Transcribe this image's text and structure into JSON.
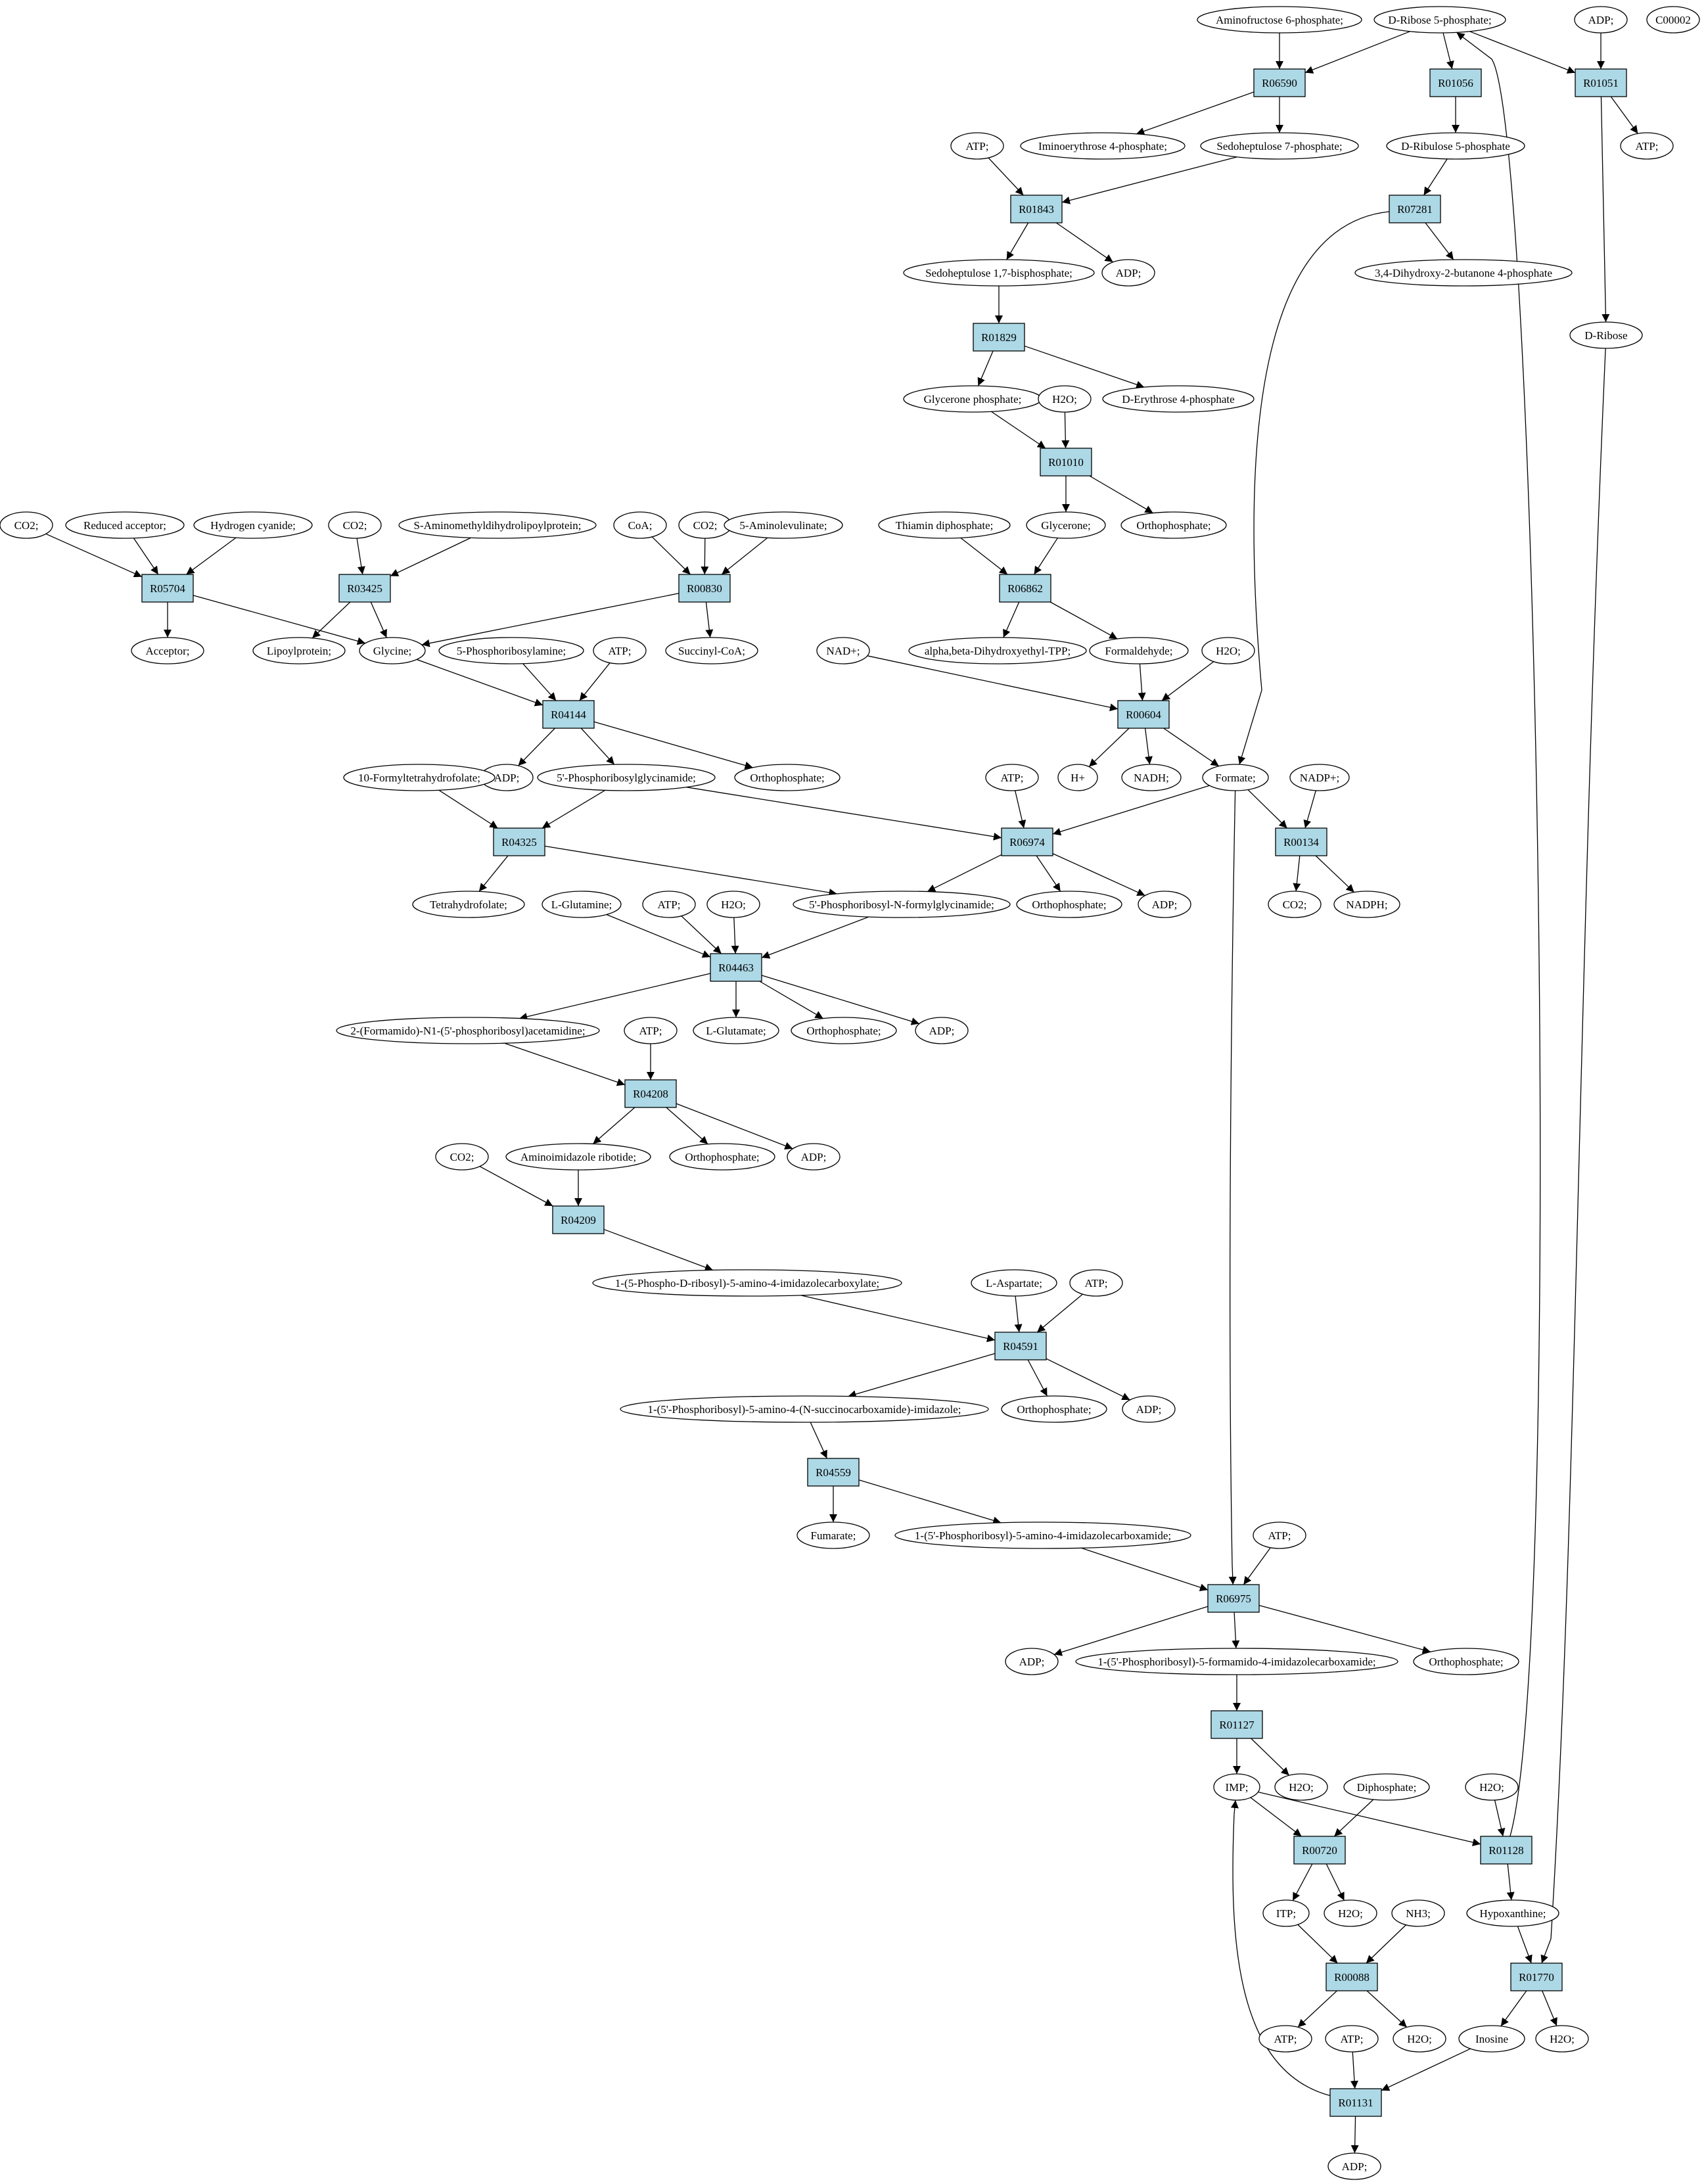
{
  "colors": {
    "reaction_fill": "#add8e6",
    "compound_fill": "#ffffff",
    "start_fill": "#00ff00",
    "query_fill": "#ffff00",
    "stroke": "#000000"
  },
  "reactions": [
    {
      "id": "r_R06590",
      "label": "R06590"
    },
    {
      "id": "r_R01056",
      "label": "R01056"
    },
    {
      "id": "r_R01051",
      "label": "R01051"
    },
    {
      "id": "r_R01843",
      "label": "R01843"
    },
    {
      "id": "r_R07281",
      "label": "R07281"
    },
    {
      "id": "r_R01829",
      "label": "R01829"
    },
    {
      "id": "r_R01010",
      "label": "R01010"
    },
    {
      "id": "r_R05704",
      "label": "R05704"
    },
    {
      "id": "r_R03425",
      "label": "R03425"
    },
    {
      "id": "r_R00830",
      "label": "R00830"
    },
    {
      "id": "r_R06862",
      "label": "R06862"
    },
    {
      "id": "r_R04144",
      "label": "R04144"
    },
    {
      "id": "r_R00604",
      "label": "R00604"
    },
    {
      "id": "r_R04325",
      "label": "R04325"
    },
    {
      "id": "r_R06974",
      "label": "R06974"
    },
    {
      "id": "r_R00134",
      "label": "R00134"
    },
    {
      "id": "r_R04463",
      "label": "R04463"
    },
    {
      "id": "r_R04208",
      "label": "R04208"
    },
    {
      "id": "r_R04209",
      "label": "R04209"
    },
    {
      "id": "r_R04591",
      "label": "R04591"
    },
    {
      "id": "r_R04559",
      "label": "R04559"
    },
    {
      "id": "r_R06975",
      "label": "R06975"
    },
    {
      "id": "r_R01127",
      "label": "R01127"
    },
    {
      "id": "r_R00720",
      "label": "R00720"
    },
    {
      "id": "r_R01128",
      "label": "R01128"
    },
    {
      "id": "r_R00088",
      "label": "R00088"
    },
    {
      "id": "r_R01770",
      "label": "R01770"
    },
    {
      "id": "r_R01131",
      "label": "R01131"
    }
  ],
  "compounds": [
    {
      "id": "c_aminofructose6p",
      "label": "Aminofructose 6-phosphate;"
    },
    {
      "id": "c_dribose5p",
      "label": "D-Ribose 5-phosphate;",
      "style": "start"
    },
    {
      "id": "c_adp_top",
      "label": "ADP;"
    },
    {
      "id": "c_c00002",
      "label": "C00002",
      "style": "query"
    },
    {
      "id": "c_atp_r01051",
      "label": "ATP;"
    },
    {
      "id": "c_iminoerythrose4p",
      "label": "Iminoerythrose 4-phosphate;"
    },
    {
      "id": "c_sedoheptulose7p",
      "label": "Sedoheptulose 7-phosphate;"
    },
    {
      "id": "c_dribulose5p",
      "label": "D-Ribulose 5-phosphate"
    },
    {
      "id": "c_atp_r01843",
      "label": "ATP;"
    },
    {
      "id": "c_sedoheptulose17bp",
      "label": "Sedoheptulose 1,7-bisphosphate;"
    },
    {
      "id": "c_adp_r01843",
      "label": "ADP;"
    },
    {
      "id": "c_dihydroxybutanone4p",
      "label": "3,4-Dihydroxy-2-butanone 4-phosphate"
    },
    {
      "id": "c_dribose",
      "label": "D-Ribose"
    },
    {
      "id": "c_glyceronep",
      "label": "Glycerone phosphate;"
    },
    {
      "id": "c_h2o_r01010",
      "label": "H2O;"
    },
    {
      "id": "c_derythrose4p",
      "label": "D-Erythrose 4-phosphate"
    },
    {
      "id": "c_co2_r05704",
      "label": "CO2;"
    },
    {
      "id": "c_reducedacceptor",
      "label": "Reduced acceptor;"
    },
    {
      "id": "c_hydrogencyanide",
      "label": "Hydrogen cyanide;"
    },
    {
      "id": "c_co2_r03425",
      "label": "CO2;"
    },
    {
      "id": "c_saminomethyl",
      "label": "S-Aminomethyldihydrolipoylprotein;"
    },
    {
      "id": "c_coa",
      "label": "CoA;"
    },
    {
      "id": "c_co2_r00830",
      "label": "CO2;"
    },
    {
      "id": "c_5aminolevulinate",
      "label": "5-Aminolevulinate;"
    },
    {
      "id": "c_thiamindp",
      "label": "Thiamin diphosphate;"
    },
    {
      "id": "c_glycerone",
      "label": "Glycerone;"
    },
    {
      "id": "c_orthophosphate_r01010",
      "label": "Orthophosphate;"
    },
    {
      "id": "c_acceptor",
      "label": "Acceptor;"
    },
    {
      "id": "c_lipoylprotein",
      "label": "Lipoylprotein;"
    },
    {
      "id": "c_glycine",
      "label": "Glycine;"
    },
    {
      "id": "c_5phosphoribosylamine",
      "label": "5-Phosphoribosylamine;"
    },
    {
      "id": "c_atp_r04144",
      "label": "ATP;"
    },
    {
      "id": "c_succinylcoa",
      "label": "Succinyl-CoA;"
    },
    {
      "id": "c_nadplus",
      "label": "NAD+;"
    },
    {
      "id": "c_alphabeta",
      "label": "alpha,beta-Dihydroxyethyl-TPP;"
    },
    {
      "id": "c_formaldehyde",
      "label": "Formaldehyde;"
    },
    {
      "id": "c_h2o_r00604",
      "label": "H2O;"
    },
    {
      "id": "c_adp_r04144",
      "label": "ADP;"
    },
    {
      "id": "c_5pribosylglycinamide",
      "label": "5'-Phosphoribosylglycinamide;"
    },
    {
      "id": "c_orthophosphate_r04144",
      "label": "Orthophosphate;"
    },
    {
      "id": "c_hplus",
      "label": "H+"
    },
    {
      "id": "c_nadh",
      "label": "NADH;"
    },
    {
      "id": "c_formate",
      "label": "Formate;"
    },
    {
      "id": "c_nadpplus",
      "label": "NADP+;"
    },
    {
      "id": "c_10formylthf",
      "label": "10-Formyltetrahydrofolate;"
    },
    {
      "id": "c_atp_r06974",
      "label": "ATP;"
    },
    {
      "id": "c_tetrahydrofolate",
      "label": "Tetrahydrofolate;"
    },
    {
      "id": "c_fgar",
      "label": "5'-Phosphoribosyl-N-formylglycinamide;"
    },
    {
      "id": "c_orthophosphate_r06974",
      "label": "Orthophosphate;"
    },
    {
      "id": "c_adp_r06974",
      "label": "ADP;"
    },
    {
      "id": "c_co2_r00134",
      "label": "CO2;"
    },
    {
      "id": "c_nadph",
      "label": "NADPH;"
    },
    {
      "id": "c_lglutamine",
      "label": "L-Glutamine;"
    },
    {
      "id": "c_atp_r04463",
      "label": "ATP;"
    },
    {
      "id": "c_h2o_r04463",
      "label": "H2O;"
    },
    {
      "id": "c_fgam",
      "label": "2-(Formamido)-N1-(5'-phosphoribosyl)acetamidine;"
    },
    {
      "id": "c_lglutamate",
      "label": "L-Glutamate;"
    },
    {
      "id": "c_orthophosphate_r04463",
      "label": "Orthophosphate;"
    },
    {
      "id": "c_adp_r04463",
      "label": "ADP;"
    },
    {
      "id": "c_atp_r04208",
      "label": "ATP;"
    },
    {
      "id": "c_co2_r04209",
      "label": "CO2;"
    },
    {
      "id": "c_air",
      "label": "Aminoimidazole ribotide;"
    },
    {
      "id": "c_orthophosphate_r04208",
      "label": "Orthophosphate;"
    },
    {
      "id": "c_adp_r04208",
      "label": "ADP;"
    },
    {
      "id": "c_cair",
      "label": "1-(5-Phospho-D-ribosyl)-5-amino-4-imidazolecarboxylate;"
    },
    {
      "id": "c_laspartate",
      "label": "L-Aspartate;"
    },
    {
      "id": "c_atp_r04591",
      "label": "ATP;"
    },
    {
      "id": "c_saicar",
      "label": "1-(5'-Phosphoribosyl)-5-amino-4-(N-succinocarboxamide)-imidazole;"
    },
    {
      "id": "c_orthophosphate_r04591",
      "label": "Orthophosphate;"
    },
    {
      "id": "c_adp_r04591",
      "label": "ADP;"
    },
    {
      "id": "c_fumarate",
      "label": "Fumarate;"
    },
    {
      "id": "c_aicar",
      "label": "1-(5'-Phosphoribosyl)-5-amino-4-imidazolecarboxamide;"
    },
    {
      "id": "c_atp_r06975",
      "label": "ATP;"
    },
    {
      "id": "c_adp_r06975",
      "label": "ADP;"
    },
    {
      "id": "c_faicar",
      "label": "1-(5'-Phosphoribosyl)-5-formamido-4-imidazolecarboxamide;"
    },
    {
      "id": "c_orthophosphate_r06975",
      "label": "Orthophosphate;"
    },
    {
      "id": "c_imp",
      "label": "IMP;"
    },
    {
      "id": "c_h2o_r01127",
      "label": "H2O;"
    },
    {
      "id": "c_diphosphate",
      "label": "Diphosphate;"
    },
    {
      "id": "c_h2o_r01128",
      "label": "H2O;"
    },
    {
      "id": "c_itp",
      "label": "ITP;"
    },
    {
      "id": "c_h2o_r00720",
      "label": "H2O;"
    },
    {
      "id": "c_nh3",
      "label": "NH3;"
    },
    {
      "id": "c_hypoxanthine",
      "label": "Hypoxanthine;"
    },
    {
      "id": "c_atp_r00088",
      "label": "ATP;"
    },
    {
      "id": "c_atp_r01131",
      "label": "ATP;"
    },
    {
      "id": "c_h2o_r00088",
      "label": "H2O;"
    },
    {
      "id": "c_inosine",
      "label": "Inosine"
    },
    {
      "id": "c_h2o_r01770",
      "label": "H2O;"
    },
    {
      "id": "c_adp_r01131",
      "label": "ADP;"
    }
  ],
  "edges": [
    [
      "c_aminofructose6p",
      "r_R06590"
    ],
    [
      "c_dribose5p",
      "r_R06590"
    ],
    [
      "r_R06590",
      "c_iminoerythrose4p"
    ],
    [
      "r_R06590",
      "c_sedoheptulose7p"
    ],
    [
      "c_dribose5p",
      "r_R01056"
    ],
    [
      "r_R01056",
      "c_dribulose5p"
    ],
    [
      "c_dribose5p",
      "r_R01051"
    ],
    [
      "c_adp_top",
      "r_R01051"
    ],
    [
      "r_R01051",
      "c_atp_r01051"
    ],
    [
      "r_R01051",
      "c_dribose"
    ],
    [
      "c_atp_r01843",
      "r_R01843"
    ],
    [
      "c_sedoheptulose7p",
      "r_R01843"
    ],
    [
      "r_R01843",
      "c_sedoheptulose17bp"
    ],
    [
      "r_R01843",
      "c_adp_r01843"
    ],
    [
      "c_dribulose5p",
      "r_R07281"
    ],
    [
      "r_R07281",
      "c_dihydroxybutanone4p"
    ],
    [
      "r_R07281",
      "c_formate"
    ],
    [
      "c_sedoheptulose17bp",
      "r_R01829"
    ],
    [
      "r_R01829",
      "c_glyceronep"
    ],
    [
      "r_R01829",
      "c_derythrose4p"
    ],
    [
      "c_glyceronep",
      "r_R01010"
    ],
    [
      "c_h2o_r01010",
      "r_R01010"
    ],
    [
      "r_R01010",
      "c_glycerone"
    ],
    [
      "r_R01010",
      "c_orthophosphate_r01010"
    ],
    [
      "c_co2_r05704",
      "r_R05704"
    ],
    [
      "c_reducedacceptor",
      "r_R05704"
    ],
    [
      "c_hydrogencyanide",
      "r_R05704"
    ],
    [
      "r_R05704",
      "c_acceptor"
    ],
    [
      "r_R05704",
      "c_glycine"
    ],
    [
      "c_co2_r03425",
      "r_R03425"
    ],
    [
      "c_saminomethyl",
      "r_R03425"
    ],
    [
      "r_R03425",
      "c_lipoylprotein"
    ],
    [
      "r_R03425",
      "c_glycine"
    ],
    [
      "c_coa",
      "r_R00830"
    ],
    [
      "c_co2_r00830",
      "r_R00830"
    ],
    [
      "c_5aminolevulinate",
      "r_R00830"
    ],
    [
      "r_R00830",
      "c_glycine"
    ],
    [
      "r_R00830",
      "c_succinylcoa"
    ],
    [
      "c_thiamindp",
      "r_R06862"
    ],
    [
      "c_glycerone",
      "r_R06862"
    ],
    [
      "r_R06862",
      "c_alphabeta"
    ],
    [
      "r_R06862",
      "c_formaldehyde"
    ],
    [
      "c_glycine",
      "r_R04144"
    ],
    [
      "c_5phosphoribosylamine",
      "r_R04144"
    ],
    [
      "c_atp_r04144",
      "r_R04144"
    ],
    [
      "r_R04144",
      "c_adp_r04144"
    ],
    [
      "r_R04144",
      "c_5pribosylglycinamide"
    ],
    [
      "r_R04144",
      "c_orthophosphate_r04144"
    ],
    [
      "c_nadplus",
      "r_R00604"
    ],
    [
      "c_formaldehyde",
      "r_R00604"
    ],
    [
      "c_h2o_r00604",
      "r_R00604"
    ],
    [
      "r_R00604",
      "c_hplus"
    ],
    [
      "r_R00604",
      "c_nadh"
    ],
    [
      "r_R00604",
      "c_formate"
    ],
    [
      "c_10formylthf",
      "r_R04325"
    ],
    [
      "c_5pribosylglycinamide",
      "r_R04325"
    ],
    [
      "r_R04325",
      "c_tetrahydrofolate"
    ],
    [
      "r_R04325",
      "c_fgar"
    ],
    [
      "c_5pribosylglycinamide",
      "r_R06974"
    ],
    [
      "c_atp_r06974",
      "r_R06974"
    ],
    [
      "c_formate",
      "r_R06974"
    ],
    [
      "r_R06974",
      "c_fgar"
    ],
    [
      "r_R06974",
      "c_orthophosphate_r06974"
    ],
    [
      "r_R06974",
      "c_adp_r06974"
    ],
    [
      "c_formate",
      "r_R00134"
    ],
    [
      "c_nadpplus",
      "r_R00134"
    ],
    [
      "r_R00134",
      "c_co2_r00134"
    ],
    [
      "r_R00134",
      "c_nadph"
    ],
    [
      "c_lglutamine",
      "r_R04463"
    ],
    [
      "c_atp_r04463",
      "r_R04463"
    ],
    [
      "c_h2o_r04463",
      "r_R04463"
    ],
    [
      "c_fgar",
      "r_R04463"
    ],
    [
      "r_R04463",
      "c_fgam"
    ],
    [
      "r_R04463",
      "c_lglutamate"
    ],
    [
      "r_R04463",
      "c_orthophosphate_r04463"
    ],
    [
      "r_R04463",
      "c_adp_r04463"
    ],
    [
      "c_fgam",
      "r_R04208"
    ],
    [
      "c_atp_r04208",
      "r_R04208"
    ],
    [
      "r_R04208",
      "c_air"
    ],
    [
      "r_R04208",
      "c_orthophosphate_r04208"
    ],
    [
      "r_R04208",
      "c_adp_r04208"
    ],
    [
      "c_co2_r04209",
      "r_R04209"
    ],
    [
      "c_air",
      "r_R04209"
    ],
    [
      "r_R04209",
      "c_cair"
    ],
    [
      "c_cair",
      "r_R04591"
    ],
    [
      "c_laspartate",
      "r_R04591"
    ],
    [
      "c_atp_r04591",
      "r_R04591"
    ],
    [
      "r_R04591",
      "c_saicar"
    ],
    [
      "r_R04591",
      "c_orthophosphate_r04591"
    ],
    [
      "r_R04591",
      "c_adp_r04591"
    ],
    [
      "c_saicar",
      "r_R04559"
    ],
    [
      "r_R04559",
      "c_fumarate"
    ],
    [
      "r_R04559",
      "c_aicar"
    ],
    [
      "c_aicar",
      "r_R06975"
    ],
    [
      "c_atp_r06975",
      "r_R06975"
    ],
    [
      "c_formate",
      "r_R06975"
    ],
    [
      "r_R06975",
      "c_adp_r06975"
    ],
    [
      "r_R06975",
      "c_faicar"
    ],
    [
      "r_R06975",
      "c_orthophosphate_r06975"
    ],
    [
      "c_faicar",
      "r_R01127"
    ],
    [
      "r_R01127",
      "c_imp"
    ],
    [
      "r_R01127",
      "c_h2o_r01127"
    ],
    [
      "c_imp",
      "r_R00720"
    ],
    [
      "c_diphosphate",
      "r_R00720"
    ],
    [
      "r_R00720",
      "c_itp"
    ],
    [
      "r_R00720",
      "c_h2o_r00720"
    ],
    [
      "c_imp",
      "r_R01128"
    ],
    [
      "c_h2o_r01128",
      "r_R01128"
    ],
    [
      "r_R01128",
      "c_hypoxanthine"
    ],
    [
      "r_R01128",
      "c_dribose5p"
    ],
    [
      "c_itp",
      "r_R00088"
    ],
    [
      "c_nh3",
      "r_R00088"
    ],
    [
      "r_R00088",
      "c_atp_r00088"
    ],
    [
      "r_R00088",
      "c_h2o_r00088"
    ],
    [
      "c_hypoxanthine",
      "r_R01770"
    ],
    [
      "c_dribose",
      "r_R01770"
    ],
    [
      "r_R01770",
      "c_inosine"
    ],
    [
      "r_R01770",
      "c_h2o_r01770"
    ],
    [
      "c_inosine",
      "r_R01131"
    ],
    [
      "c_atp_r01131",
      "r_R01131"
    ],
    [
      "r_R01131",
      "c_adp_r01131"
    ],
    [
      "r_R01131",
      "c_imp"
    ]
  ]
}
